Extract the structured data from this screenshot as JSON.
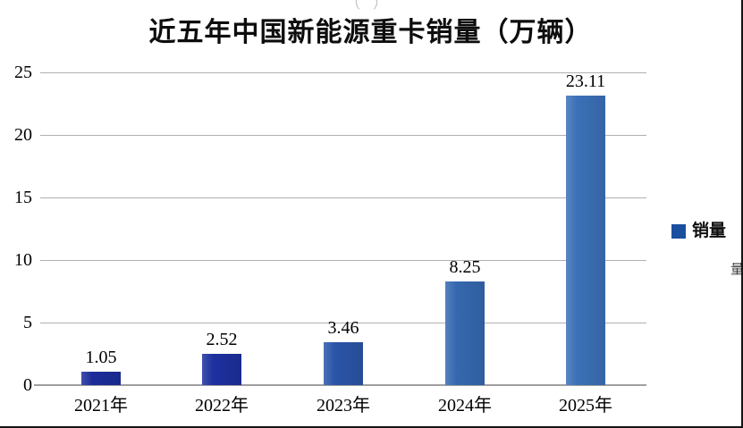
{
  "chart_data": {
    "type": "bar",
    "title": "近五年中国新能源重卡销量（万辆）",
    "categories": [
      "2021年",
      "2022年",
      "2023年",
      "2024年",
      "2025年"
    ],
    "series": [
      {
        "name": "销量",
        "values": [
          1.05,
          2.52,
          3.46,
          8.25,
          23.11
        ]
      }
    ],
    "value_labels": [
      "1.05",
      "2.52",
      "3.46",
      "8.25",
      "23.11"
    ],
    "xlabel": "",
    "ylabel": "",
    "ylim": [
      0,
      25
    ],
    "y_ticks": [
      0,
      5,
      10,
      15,
      20,
      25
    ],
    "grid": true,
    "legend": {
      "position": "right",
      "label": "销量",
      "swatch_color": "#1a4fa0"
    },
    "bar_colors": [
      "#1c2d9a",
      "#1d309e",
      "#2a55a8",
      "#3568af",
      "#3b70b7"
    ],
    "gridline_color": "#b0b0b0",
    "axis_line_color": "#9f9f9f"
  },
  "artifacts": {
    "top_edge_fragment": "（）",
    "left_edge_fragment": "(",
    "right_edge_fragment": "量"
  }
}
